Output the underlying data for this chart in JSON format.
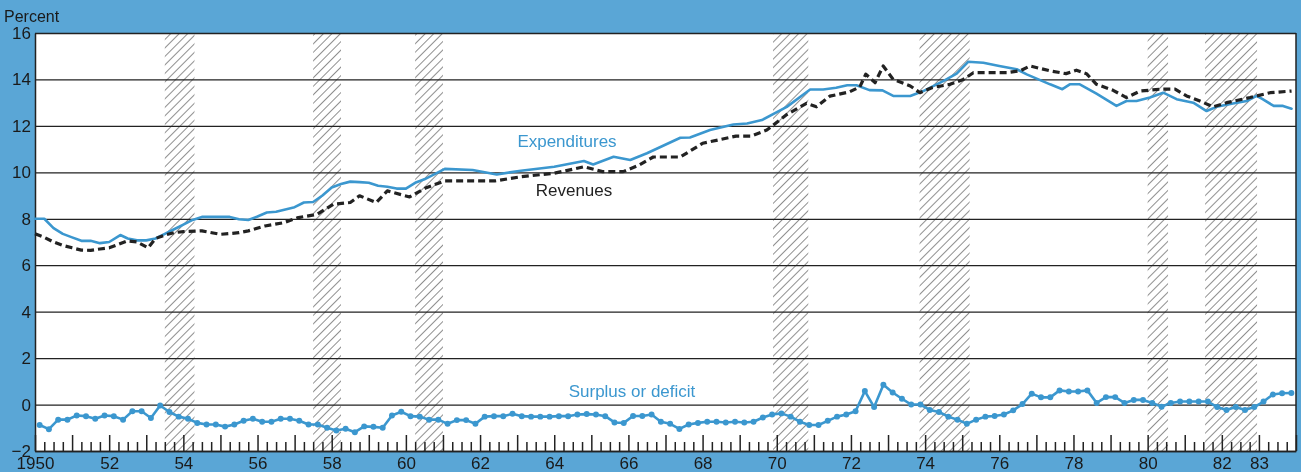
{
  "chart_data": {
    "type": "line",
    "ylabel": "Percent",
    "xlim": [
      1950,
      1984
    ],
    "ylim": [
      -2,
      16
    ],
    "yticks": [
      -2,
      0,
      2,
      4,
      6,
      8,
      10,
      12,
      14,
      16
    ],
    "grid": "y",
    "legend": false,
    "xticks": [
      {
        "value": 1950,
        "label": "1950"
      },
      {
        "value": 1951,
        "label": null
      },
      {
        "value": 1952,
        "label": "52"
      },
      {
        "value": 1953,
        "label": null
      },
      {
        "value": 1954,
        "label": "54"
      },
      {
        "value": 1955,
        "label": null
      },
      {
        "value": 1956,
        "label": "56"
      },
      {
        "value": 1957,
        "label": null
      },
      {
        "value": 1958,
        "label": "58"
      },
      {
        "value": 1959,
        "label": null
      },
      {
        "value": 1960,
        "label": "60"
      },
      {
        "value": 1961,
        "label": null
      },
      {
        "value": 1962,
        "label": "62"
      },
      {
        "value": 1963,
        "label": null
      },
      {
        "value": 1964,
        "label": "64"
      },
      {
        "value": 1965,
        "label": null
      },
      {
        "value": 1966,
        "label": "66"
      },
      {
        "value": 1967,
        "label": null
      },
      {
        "value": 1968,
        "label": "68"
      },
      {
        "value": 1969,
        "label": null
      },
      {
        "value": 1970,
        "label": "70"
      },
      {
        "value": 1971,
        "label": null
      },
      {
        "value": 1972,
        "label": "72"
      },
      {
        "value": 1973,
        "label": null
      },
      {
        "value": 1974,
        "label": "74"
      },
      {
        "value": 1975,
        "label": null
      },
      {
        "value": 1976,
        "label": "76"
      },
      {
        "value": 1977,
        "label": null
      },
      {
        "value": 1978,
        "label": "78"
      },
      {
        "value": 1979,
        "label": null
      },
      {
        "value": 1980,
        "label": "80"
      },
      {
        "value": 1981,
        "label": null
      },
      {
        "value": 1982,
        "label": "82"
      },
      {
        "value": 1983,
        "label": "83"
      },
      {
        "value": 1984,
        "label": null
      },
      {
        "value": 1950.5,
        "label": null
      },
      {
        "value": 1951.5,
        "label": null
      },
      {
        "value": 1952.5,
        "label": null
      },
      {
        "value": 1953.5,
        "label": null
      },
      {
        "value": 1954.5,
        "label": null
      },
      {
        "value": 1955.5,
        "label": null
      },
      {
        "value": 1956.5,
        "label": null
      },
      {
        "value": 1957.5,
        "label": null
      },
      {
        "value": 1958.5,
        "label": null
      },
      {
        "value": 1959.5,
        "label": null
      },
      {
        "value": 1960.5,
        "label": null
      },
      {
        "value": 1961.5,
        "label": null
      },
      {
        "value": 1962.5,
        "label": null
      },
      {
        "value": 1963.5,
        "label": null
      },
      {
        "value": 1964.5,
        "label": null
      },
      {
        "value": 1965.5,
        "label": null
      },
      {
        "value": 1966.5,
        "label": null
      },
      {
        "value": 1967.5,
        "label": null
      },
      {
        "value": 1968.5,
        "label": null
      },
      {
        "value": 1969.5,
        "label": null
      },
      {
        "value": 1970.5,
        "label": null
      },
      {
        "value": 1971.5,
        "label": null
      },
      {
        "value": 1972.5,
        "label": null
      },
      {
        "value": 1973.5,
        "label": null
      },
      {
        "value": 1974.5,
        "label": null
      },
      {
        "value": 1975.5,
        "label": null
      },
      {
        "value": 1976.5,
        "label": null
      },
      {
        "value": 1977.5,
        "label": null
      },
      {
        "value": 1978.5,
        "label": null
      },
      {
        "value": 1979.5,
        "label": null
      },
      {
        "value": 1980.5,
        "label": null
      },
      {
        "value": 1981.5,
        "label": null
      },
      {
        "value": 1982.5,
        "label": null
      },
      {
        "value": 1983.5,
        "label": null
      },
      {
        "value": 1950.25,
        "label": null
      },
      {
        "value": 1950.75,
        "label": null
      },
      {
        "value": 1951.25,
        "label": null
      },
      {
        "value": 1951.75,
        "label": null
      },
      {
        "value": 1952.25,
        "label": null
      },
      {
        "value": 1952.75,
        "label": null
      },
      {
        "value": 1953.25,
        "label": null
      },
      {
        "value": 1953.75,
        "label": null
      },
      {
        "value": 1954.25,
        "label": null
      },
      {
        "value": 1954.75,
        "label": null
      },
      {
        "value": 1955.25,
        "label": null
      },
      {
        "value": 1955.75,
        "label": null
      },
      {
        "value": 1956.25,
        "label": null
      },
      {
        "value": 1956.75,
        "label": null
      },
      {
        "value": 1957.25,
        "label": null
      },
      {
        "value": 1957.75,
        "label": null
      },
      {
        "value": 1958.25,
        "label": null
      },
      {
        "value": 1958.75,
        "label": null
      },
      {
        "value": 1959.25,
        "label": null
      },
      {
        "value": 1959.75,
        "label": null
      },
      {
        "value": 1960.25,
        "label": null
      },
      {
        "value": 1960.75,
        "label": null
      },
      {
        "value": 1961.25,
        "label": null
      },
      {
        "value": 1961.75,
        "label": null
      },
      {
        "value": 1962.25,
        "label": null
      },
      {
        "value": 1962.75,
        "label": null
      },
      {
        "value": 1963.25,
        "label": null
      },
      {
        "value": 1963.75,
        "label": null
      },
      {
        "value": 1964.25,
        "label": null
      },
      {
        "value": 1964.75,
        "label": null
      },
      {
        "value": 1965.25,
        "label": null
      },
      {
        "value": 1965.75,
        "label": null
      },
      {
        "value": 1966.25,
        "label": null
      },
      {
        "value": 1966.75,
        "label": null
      },
      {
        "value": 1967.25,
        "label": null
      },
      {
        "value": 1967.75,
        "label": null
      },
      {
        "value": 1968.25,
        "label": null
      },
      {
        "value": 1968.75,
        "label": null
      },
      {
        "value": 1969.25,
        "label": null
      },
      {
        "value": 1969.75,
        "label": null
      },
      {
        "value": 1970.25,
        "label": null
      },
      {
        "value": 1970.75,
        "label": null
      },
      {
        "value": 1971.25,
        "label": null
      },
      {
        "value": 1971.75,
        "label": null
      },
      {
        "value": 1972.25,
        "label": null
      },
      {
        "value": 1972.75,
        "label": null
      },
      {
        "value": 1973.25,
        "label": null
      },
      {
        "value": 1973.75,
        "label": null
      },
      {
        "value": 1974.25,
        "label": null
      },
      {
        "value": 1974.75,
        "label": null
      },
      {
        "value": 1975.25,
        "label": null
      },
      {
        "value": 1975.75,
        "label": null
      },
      {
        "value": 1976.25,
        "label": null
      },
      {
        "value": 1976.75,
        "label": null
      },
      {
        "value": 1977.25,
        "label": null
      },
      {
        "value": 1977.75,
        "label": null
      },
      {
        "value": 1978.25,
        "label": null
      },
      {
        "value": 1978.75,
        "label": null
      },
      {
        "value": 1979.25,
        "label": null
      },
      {
        "value": 1979.75,
        "label": null
      },
      {
        "value": 1980.25,
        "label": null
      },
      {
        "value": 1980.75,
        "label": null
      },
      {
        "value": 1981.25,
        "label": null
      },
      {
        "value": 1981.75,
        "label": null
      },
      {
        "value": 1982.25,
        "label": null
      },
      {
        "value": 1982.75,
        "label": null
      },
      {
        "value": 1983.25,
        "label": null
      },
      {
        "value": 1983.75,
        "label": null
      }
    ],
    "bands": [
      {
        "axis": "x",
        "from": 1953.5,
        "to": 1954.3
      },
      {
        "axis": "x",
        "from": 1957.5,
        "to": 1958.25
      },
      {
        "axis": "x",
        "from": 1960.25,
        "to": 1961.0
      },
      {
        "axis": "x",
        "from": 1969.9,
        "to": 1970.85
      },
      {
        "axis": "x",
        "from": 1973.85,
        "to": 1975.2
      },
      {
        "axis": "x",
        "from": 1980.0,
        "to": 1980.55
      },
      {
        "axis": "x",
        "from": 1981.55,
        "to": 1982.95
      }
    ],
    "series": [
      {
        "name": "Expenditures",
        "color": "#3b97cf",
        "line_style": "solid",
        "marker": "none",
        "x": [
          1950,
          1950.25,
          1950.5,
          1950.75,
          1951,
          1951.25,
          1951.5,
          1951.75,
          1952,
          1952.3,
          1952.5,
          1952.75,
          1953,
          1953.25,
          1953.5,
          1953.75,
          1954,
          1954.25,
          1954.5,
          1955,
          1955.25,
          1955.5,
          1955.75,
          1956,
          1956.25,
          1956.5,
          1956.75,
          1957,
          1957.25,
          1957.5,
          1957.75,
          1958,
          1958.25,
          1958.5,
          1958.75,
          1959,
          1959.25,
          1959.5,
          1959.75,
          1960,
          1960.25,
          1960.5,
          1960.75,
          1961.05,
          1961.8,
          1962.45,
          1963.1,
          1964,
          1964.8,
          1965.05,
          1965.6,
          1966.05,
          1966.5,
          1967.4,
          1967.66,
          1968.2,
          1968.83,
          1969.2,
          1969.6,
          1970.27,
          1970.9,
          1971.25,
          1971.6,
          1971.9,
          1972.15,
          1972.5,
          1972.85,
          1973.14,
          1973.6,
          1973.95,
          1974.5,
          1974.85,
          1975.16,
          1975.57,
          1976,
          1976.47,
          1976.74,
          1977.37,
          1977.7,
          1977.9,
          1978.17,
          1978.62,
          1979.16,
          1979.43,
          1979.7,
          1980.06,
          1980.42,
          1980.78,
          1981.23,
          1981.59,
          1981.86,
          1982.3,
          1982.67,
          1982.94,
          1983.1,
          1983.4,
          1983.65,
          1983.88
        ],
        "values": [
          8.0,
          8.0,
          7.6,
          7.35,
          7.2,
          7.05,
          7.05,
          6.95,
          7.0,
          7.3,
          7.15,
          7.07,
          7.07,
          7.15,
          7.35,
          7.55,
          7.75,
          7.95,
          8.08,
          8.08,
          8.08,
          7.98,
          7.95,
          8.1,
          8.27,
          8.3,
          8.4,
          8.5,
          8.7,
          8.72,
          9.0,
          9.35,
          9.5,
          9.6,
          9.58,
          9.55,
          9.42,
          9.38,
          9.3,
          9.3,
          9.55,
          9.7,
          9.9,
          10.15,
          10.1,
          9.91,
          10.07,
          10.24,
          10.49,
          10.34,
          10.67,
          10.53,
          10.82,
          11.49,
          11.5,
          11.82,
          12.06,
          12.1,
          12.25,
          12.82,
          13.57,
          13.57,
          13.64,
          13.75,
          13.75,
          13.54,
          13.53,
          13.29,
          13.29,
          13.5,
          13.94,
          14.25,
          14.76,
          14.72,
          14.58,
          14.44,
          14.22,
          13.79,
          13.58,
          13.79,
          13.79,
          13.39,
          12.86,
          13.07,
          13.07,
          13.22,
          13.43,
          13.15,
          13.0,
          12.64,
          12.82,
          12.96,
          13.07,
          13.29,
          13.15,
          12.86,
          12.86,
          12.74
        ]
      },
      {
        "name": "Revenues",
        "color": "#222222",
        "line_style": "dashed",
        "marker": "none",
        "x": [
          1950,
          1950.25,
          1950.5,
          1950.75,
          1951,
          1951.25,
          1951.5,
          1951.75,
          1952,
          1952.25,
          1952.5,
          1952.75,
          1953.05,
          1953.25,
          1953.5,
          1953.75,
          1954,
          1954.5,
          1955,
          1955.5,
          1955.75,
          1956.2,
          1956.7,
          1957.1,
          1957.6,
          1958.05,
          1958.5,
          1958.75,
          1959.2,
          1959.5,
          1960.1,
          1960.55,
          1961.05,
          1961.75,
          1962.4,
          1963.1,
          1964,
          1964.8,
          1965.3,
          1965.86,
          1966.3,
          1966.67,
          1967.4,
          1968,
          1968.9,
          1969.3,
          1969.73,
          1970.27,
          1970.8,
          1971.07,
          1971.43,
          1971.97,
          1972.24,
          1972.4,
          1972.65,
          1972.87,
          1973.14,
          1973.6,
          1973.86,
          1974.2,
          1974.67,
          1975.03,
          1975.3,
          1975.75,
          1976.2,
          1976.56,
          1976.83,
          1977.37,
          1977.8,
          1978.08,
          1978.35,
          1978.62,
          1979.07,
          1979.43,
          1979.8,
          1980.33,
          1980.74,
          1981.05,
          1981.41,
          1981.77,
          1982.13,
          1982.76,
          1983.3,
          1983.88
        ],
        "values": [
          7.35,
          7.2,
          7.0,
          6.85,
          6.75,
          6.65,
          6.64,
          6.7,
          6.75,
          6.9,
          7.05,
          7.0,
          6.75,
          7.15,
          7.3,
          7.4,
          7.45,
          7.48,
          7.33,
          7.4,
          7.48,
          7.69,
          7.83,
          8.05,
          8.19,
          8.63,
          8.7,
          8.99,
          8.7,
          9.2,
          8.94,
          9.34,
          9.63,
          9.63,
          9.63,
          9.81,
          9.96,
          10.24,
          10.03,
          10.03,
          10.32,
          10.66,
          10.66,
          11.25,
          11.56,
          11.56,
          11.82,
          12.49,
          12.97,
          12.82,
          13.28,
          13.47,
          13.68,
          14.23,
          13.86,
          14.58,
          14.0,
          13.72,
          13.43,
          13.65,
          13.79,
          14.0,
          14.29,
          14.29,
          14.29,
          14.37,
          14.58,
          14.37,
          14.25,
          14.4,
          14.25,
          13.79,
          13.53,
          13.22,
          13.5,
          13.58,
          13.58,
          13.29,
          13.07,
          12.82,
          13.0,
          13.22,
          13.43,
          13.5
        ]
      },
      {
        "name": "Surplus or deficit",
        "color": "#3b97cf",
        "line_style": "solid",
        "marker": "circle",
        "x": [
          1950.125,
          1950.375,
          1950.625,
          1950.875,
          1951.125,
          1951.375,
          1951.625,
          1951.875,
          1952.125,
          1952.375,
          1952.625,
          1952.875,
          1953.125,
          1953.375,
          1953.625,
          1953.875,
          1954.125,
          1954.375,
          1954.625,
          1954.875,
          1955.125,
          1955.375,
          1955.625,
          1955.875,
          1956.125,
          1956.375,
          1956.625,
          1956.875,
          1957.125,
          1957.375,
          1957.625,
          1957.875,
          1958.125,
          1958.375,
          1958.625,
          1958.875,
          1959.125,
          1959.375,
          1959.625,
          1959.875,
          1960.125,
          1960.375,
          1960.625,
          1960.875,
          1961.125,
          1961.375,
          1961.625,
          1961.875,
          1962.125,
          1962.375,
          1962.625,
          1962.875,
          1963.125,
          1963.375,
          1963.625,
          1963.875,
          1964.125,
          1964.375,
          1964.625,
          1964.875,
          1965.125,
          1965.375,
          1965.625,
          1965.875,
          1966.125,
          1966.375,
          1966.625,
          1966.875,
          1967.125,
          1967.375,
          1967.625,
          1967.875,
          1968.125,
          1968.375,
          1968.625,
          1968.875,
          1969.125,
          1969.375,
          1969.625,
          1969.875,
          1970.125,
          1970.375,
          1970.625,
          1970.875,
          1971.125,
          1971.375,
          1971.625,
          1971.875,
          1972.125,
          1972.375,
          1972.625,
          1972.875,
          1973.125,
          1973.375,
          1973.625,
          1973.875,
          1974.125,
          1974.375,
          1974.625,
          1974.875,
          1975.125,
          1975.375,
          1975.625,
          1975.875,
          1976.125,
          1976.375,
          1976.625,
          1976.875,
          1977.125,
          1977.375,
          1977.625,
          1977.875,
          1978.125,
          1978.375,
          1978.625,
          1978.875,
          1979.125,
          1979.375,
          1979.625,
          1979.875,
          1980.125,
          1980.375,
          1980.625,
          1980.875,
          1981.125,
          1981.375,
          1981.625,
          1981.875,
          1982.125,
          1982.375,
          1982.625,
          1982.875,
          1983.125,
          1983.375,
          1983.625,
          1983.875
        ],
        "values": [
          -0.88,
          -1.06,
          -0.65,
          -0.65,
          -0.47,
          -0.5,
          -0.61,
          -0.47,
          -0.5,
          -0.65,
          -0.29,
          -0.29,
          -0.58,
          -0.04,
          -0.32,
          -0.52,
          -0.61,
          -0.79,
          -0.86,
          -0.86,
          -0.95,
          -0.86,
          -0.7,
          -0.61,
          -0.74,
          -0.74,
          -0.61,
          -0.61,
          -0.7,
          -0.86,
          -0.86,
          -1.0,
          -1.12,
          -1.04,
          -1.19,
          -0.94,
          -0.96,
          -1.0,
          -0.47,
          -0.31,
          -0.5,
          -0.52,
          -0.65,
          -0.65,
          -0.83,
          -0.67,
          -0.67,
          -0.83,
          -0.52,
          -0.5,
          -0.5,
          -0.4,
          -0.5,
          -0.52,
          -0.52,
          -0.52,
          -0.5,
          -0.5,
          -0.43,
          -0.41,
          -0.43,
          -0.5,
          -0.77,
          -0.79,
          -0.49,
          -0.49,
          -0.43,
          -0.74,
          -0.83,
          -1.05,
          -0.86,
          -0.79,
          -0.74,
          -0.74,
          -0.77,
          -0.74,
          -0.77,
          -0.74,
          -0.56,
          -0.43,
          -0.38,
          -0.52,
          -0.74,
          -0.88,
          -0.88,
          -0.7,
          -0.52,
          -0.43,
          -0.29,
          0.58,
          -0.11,
          0.85,
          0.52,
          0.25,
          0,
          0,
          -0.23,
          -0.32,
          -0.52,
          -0.65,
          -0.83,
          -0.65,
          -0.52,
          -0.49,
          -0.43,
          -0.25,
          0.02,
          0.47,
          0.31,
          0.31,
          0.61,
          0.56,
          0.56,
          0.61,
          0.07,
          0.32,
          0.32,
          0.07,
          0.2,
          0.2,
          0.07,
          -0.09,
          0.07,
          0.13,
          0.13,
          0.13,
          0.13,
          -0.11,
          -0.23,
          -0.11,
          -0.23,
          -0.11,
          0.13,
          0.43,
          0.49,
          0.5
        ]
      }
    ]
  }
}
